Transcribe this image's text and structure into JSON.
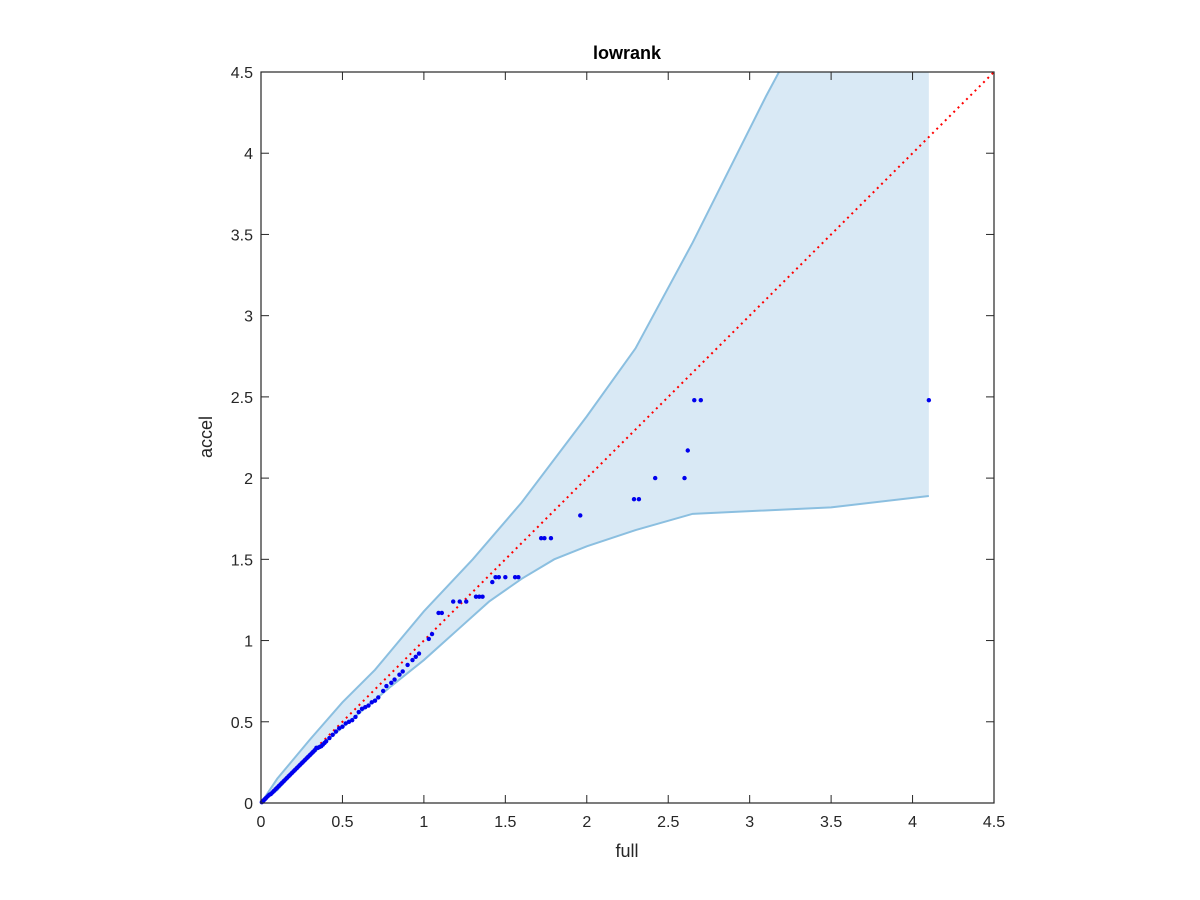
{
  "chart_data": {
    "type": "scatter",
    "title": "lowrank",
    "xlabel": "full",
    "ylabel": "accel",
    "xlim": [
      0,
      4.5
    ],
    "ylim": [
      0,
      4.5
    ],
    "xticks": [
      0,
      0.5,
      1,
      1.5,
      2,
      2.5,
      3,
      3.5,
      4,
      4.5
    ],
    "yticks": [
      0,
      0.5,
      1,
      1.5,
      2,
      2.5,
      3,
      3.5,
      4,
      4.5
    ],
    "xtick_labels": [
      "0",
      "0.5",
      "1",
      "1.5",
      "2",
      "2.5",
      "3",
      "3.5",
      "4",
      "4.5"
    ],
    "ytick_labels": [
      "0",
      "0.5",
      "1",
      "1.5",
      "2",
      "2.5",
      "3",
      "3.5",
      "4",
      "4.5"
    ],
    "grid": false,
    "colors": {
      "band_fill": "#d9e9f5",
      "band_edge": "#8bbfe0",
      "points": "#0000ee",
      "reference_line": "#ff0000",
      "axes": "#262626"
    },
    "band_upper": [
      [
        0,
        0
      ],
      [
        0.1,
        0.15
      ],
      [
        0.2,
        0.27
      ],
      [
        0.3,
        0.39
      ],
      [
        0.5,
        0.62
      ],
      [
        0.7,
        0.82
      ],
      [
        1.0,
        1.18
      ],
      [
        1.3,
        1.5
      ],
      [
        1.6,
        1.85
      ],
      [
        2.0,
        2.38
      ],
      [
        2.3,
        2.8
      ],
      [
        2.65,
        3.45
      ],
      [
        2.9,
        3.95
      ],
      [
        3.1,
        4.35
      ],
      [
        3.18,
        4.5
      ]
    ],
    "band_lower": [
      [
        0,
        0
      ],
      [
        0.1,
        0.08
      ],
      [
        0.2,
        0.19
      ],
      [
        0.4,
        0.38
      ],
      [
        0.6,
        0.55
      ],
      [
        0.8,
        0.72
      ],
      [
        1.0,
        0.88
      ],
      [
        1.2,
        1.06
      ],
      [
        1.4,
        1.24
      ],
      [
        1.6,
        1.38
      ],
      [
        1.8,
        1.5
      ],
      [
        2.0,
        1.58
      ],
      [
        2.3,
        1.68
      ],
      [
        2.65,
        1.78
      ],
      [
        3.5,
        1.82
      ],
      [
        4.1,
        1.89
      ]
    ],
    "band_xmax": 4.1,
    "reference_line": {
      "style": "dotted",
      "from": [
        0,
        0
      ],
      "to": [
        4.5,
        4.5
      ]
    },
    "series": [
      {
        "x": [
          0.005,
          0.01,
          0.015,
          0.02,
          0.025,
          0.03,
          0.04,
          0.05,
          0.06,
          0.07,
          0.08,
          0.09,
          0.1,
          0.11,
          0.12,
          0.13,
          0.14,
          0.15,
          0.16,
          0.17,
          0.18,
          0.19,
          0.2,
          0.21,
          0.22,
          0.23,
          0.24,
          0.25,
          0.26,
          0.27,
          0.28,
          0.29,
          0.3,
          0.31,
          0.32,
          0.33,
          0.34,
          0.35,
          0.36,
          0.37,
          0.38,
          0.39,
          0.4,
          0.42,
          0.44,
          0.46,
          0.48,
          0.5,
          0.52,
          0.54,
          0.56,
          0.58,
          0.6,
          0.62,
          0.64,
          0.66,
          0.68,
          0.7,
          0.72,
          0.75,
          0.77,
          0.8,
          0.82,
          0.85,
          0.87,
          0.9,
          0.93,
          0.95,
          0.97,
          1.03,
          1.05,
          1.09,
          1.11,
          1.18,
          1.22,
          1.26,
          1.32,
          1.34,
          1.36,
          1.42,
          1.44,
          1.46,
          1.5,
          1.56,
          1.58,
          1.72,
          1.74,
          1.78,
          1.96,
          2.29,
          2.32,
          2.42,
          2.6,
          2.62,
          2.66,
          2.7,
          4.1
        ],
        "y": [
          0.005,
          0.01,
          0.015,
          0.02,
          0.025,
          0.03,
          0.04,
          0.05,
          0.055,
          0.065,
          0.075,
          0.085,
          0.095,
          0.105,
          0.115,
          0.125,
          0.135,
          0.145,
          0.155,
          0.165,
          0.175,
          0.185,
          0.195,
          0.205,
          0.215,
          0.225,
          0.235,
          0.245,
          0.255,
          0.265,
          0.275,
          0.285,
          0.295,
          0.305,
          0.315,
          0.325,
          0.34,
          0.34,
          0.345,
          0.35,
          0.36,
          0.37,
          0.38,
          0.4,
          0.42,
          0.44,
          0.46,
          0.47,
          0.49,
          0.5,
          0.51,
          0.53,
          0.56,
          0.58,
          0.59,
          0.6,
          0.62,
          0.63,
          0.65,
          0.69,
          0.72,
          0.74,
          0.76,
          0.79,
          0.81,
          0.85,
          0.88,
          0.9,
          0.92,
          1.01,
          1.04,
          1.17,
          1.17,
          1.24,
          1.24,
          1.24,
          1.27,
          1.27,
          1.27,
          1.36,
          1.39,
          1.39,
          1.39,
          1.39,
          1.39,
          1.63,
          1.63,
          1.63,
          1.77,
          1.87,
          1.87,
          2.0,
          2.0,
          2.17,
          2.48,
          2.48,
          2.48
        ]
      }
    ]
  }
}
